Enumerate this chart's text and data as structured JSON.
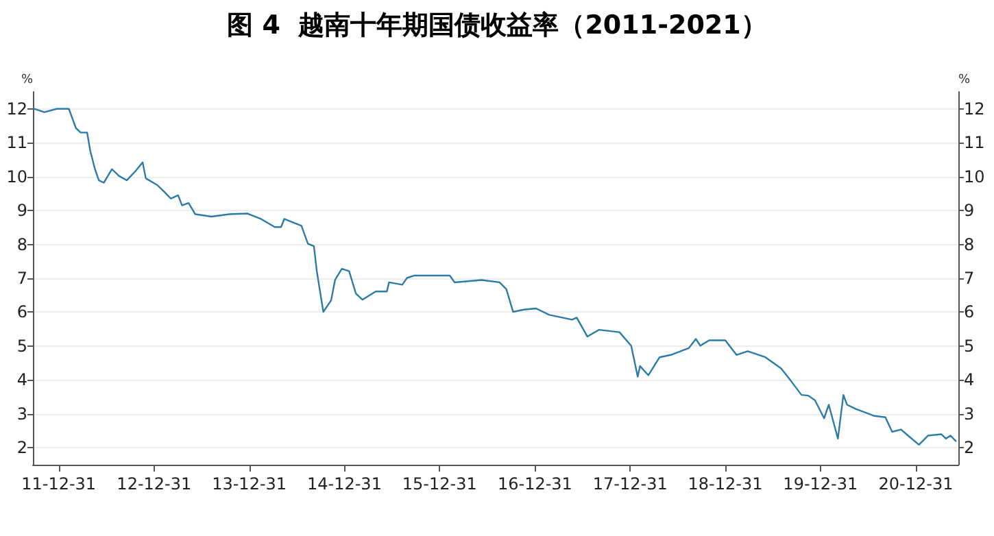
{
  "chart_data": {
    "type": "line",
    "title": "图 4  越南十年期国债收益率（2011-2021）",
    "ylabel": "%",
    "y2label": "%",
    "xlim": [
      "2011-09-23",
      "2021-06-12"
    ],
    "xticks": [
      {
        "value": "2011-12-31",
        "label": "11-12-31"
      },
      {
        "value": "2012-12-31",
        "label": "12-12-31"
      },
      {
        "value": "2013-12-31",
        "label": "13-12-31"
      },
      {
        "value": "2014-12-31",
        "label": "14-12-31"
      },
      {
        "value": "2015-12-31",
        "label": "15-12-31"
      },
      {
        "value": "2016-12-31",
        "label": "16-12-31"
      },
      {
        "value": "2017-12-31",
        "label": "17-12-31"
      },
      {
        "value": "2018-12-31",
        "label": "18-12-31"
      },
      {
        "value": "2019-12-31",
        "label": "19-12-31"
      },
      {
        "value": "2020-12-31",
        "label": "20-12-31"
      }
    ],
    "ylim": [
      1.5,
      12.5
    ],
    "yticks": [
      2,
      3,
      4,
      5,
      6,
      7,
      8,
      9,
      10,
      11,
      12
    ],
    "y2lim": [
      1.5,
      12.5
    ],
    "y2ticks": [
      2,
      3,
      4,
      5,
      6,
      7,
      8,
      9,
      10,
      11,
      12
    ],
    "grid": "y",
    "marker": "none",
    "line_style": "solid",
    "series": [
      {
        "color": "#2a7ba8",
        "x": [
          "2011-09-27",
          "2011-11-06",
          "2011-12-24",
          "2012-02-08",
          "2012-03-06",
          "2012-03-24",
          "2012-04-18",
          "2012-04-30",
          "2012-05-18",
          "2012-06-02",
          "2012-06-21",
          "2012-07-22",
          "2012-08-18",
          "2012-09-17",
          "2012-10-19",
          "2012-11-17",
          "2012-11-29",
          "2013-01-12",
          "2013-02-08",
          "2013-03-05",
          "2013-04-02",
          "2013-04-17",
          "2013-05-12",
          "2013-06-07",
          "2013-08-08",
          "2013-10-15",
          "2013-12-24",
          "2014-02-14",
          "2014-04-08",
          "2014-05-02",
          "2014-05-14",
          "2014-07-19",
          "2014-08-13",
          "2014-09-05",
          "2014-09-16",
          "2014-10-11",
          "2014-11-10",
          "2014-11-25",
          "2014-12-21",
          "2015-01-18",
          "2015-02-13",
          "2015-03-10",
          "2015-04-30",
          "2015-06-12",
          "2015-06-20",
          "2015-08-10",
          "2015-08-28",
          "2015-09-24",
          "2015-12-20",
          "2016-02-08",
          "2016-02-27",
          "2016-06-09",
          "2016-08-17",
          "2016-09-12",
          "2016-10-08",
          "2016-11-22",
          "2017-01-04",
          "2017-02-24",
          "2017-05-22",
          "2017-06-09",
          "2017-07-20",
          "2017-09-02",
          "2017-11-20",
          "2018-01-04",
          "2018-01-29",
          "2018-02-07",
          "2018-03-11",
          "2018-04-23",
          "2018-06-05",
          "2018-08-13",
          "2018-09-09",
          "2018-09-26",
          "2018-10-30",
          "2018-12-31",
          "2019-02-12",
          "2019-03-27",
          "2019-06-03",
          "2019-08-02",
          "2019-09-06",
          "2019-10-19",
          "2019-11-14",
          "2019-12-10",
          "2020-01-14",
          "2020-02-01",
          "2020-03-07",
          "2020-03-28",
          "2020-04-11",
          "2020-05-16",
          "2020-07-24",
          "2020-09-05",
          "2020-10-01",
          "2020-11-04",
          "2020-12-01",
          "2021-01-12",
          "2021-02-16",
          "2021-04-08",
          "2021-04-25",
          "2021-05-13",
          "2021-06-02"
        ],
        "values": [
          12.0,
          11.9,
          12.0,
          12.0,
          11.43,
          11.3,
          11.3,
          10.76,
          10.22,
          9.89,
          9.82,
          10.22,
          10.02,
          9.89,
          10.15,
          10.42,
          9.95,
          9.75,
          9.55,
          9.35,
          9.45,
          9.15,
          9.22,
          8.89,
          8.82,
          8.89,
          8.91,
          8.75,
          8.51,
          8.51,
          8.75,
          8.55,
          8.02,
          7.95,
          7.21,
          6.01,
          6.35,
          6.95,
          7.28,
          7.21,
          6.55,
          6.37,
          6.61,
          6.61,
          6.88,
          6.81,
          7.01,
          7.08,
          7.08,
          7.08,
          6.88,
          6.95,
          6.88,
          6.68,
          6.01,
          6.08,
          6.11,
          5.92,
          5.78,
          5.84,
          5.28,
          5.48,
          5.41,
          5.01,
          4.1,
          4.41,
          4.14,
          4.67,
          4.74,
          4.94,
          5.21,
          5.01,
          5.17,
          5.17,
          4.74,
          4.85,
          4.67,
          4.34,
          4.0,
          3.56,
          3.54,
          3.4,
          2.87,
          3.27,
          2.27,
          3.56,
          3.27,
          3.14,
          2.94,
          2.9,
          2.47,
          2.54,
          2.36,
          2.09,
          2.36,
          2.4,
          2.27,
          2.36,
          2.2
        ]
      }
    ]
  }
}
